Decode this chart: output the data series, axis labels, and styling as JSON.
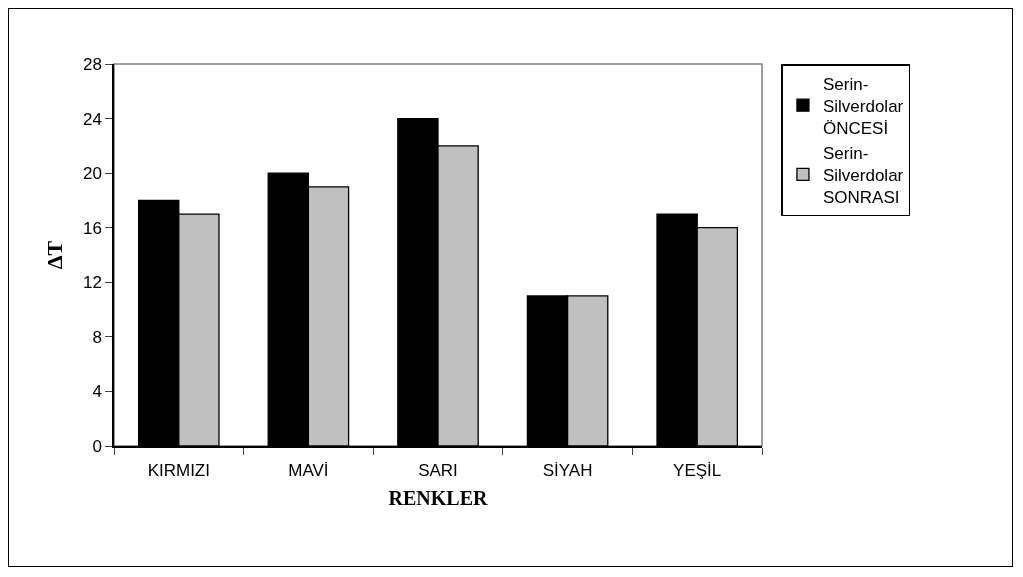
{
  "chart_data": {
    "type": "bar",
    "xlabel": "RENKLER",
    "ylabel": "ΔT",
    "categories": [
      "KIRMIZI",
      "MAVİ",
      "SARI",
      "SİYAH",
      "YEŞİL"
    ],
    "series": [
      {
        "name": "Serin-Silverdolar ÖNCESİ",
        "color": "#000000",
        "values": [
          18,
          20,
          24,
          11,
          17
        ]
      },
      {
        "name": "Serin-Silverdolar SONRASI",
        "color": "#c0c0c0",
        "values": [
          17,
          19,
          22,
          11,
          16
        ]
      }
    ],
    "ylim": [
      0,
      28
    ],
    "yticks": [
      0,
      4,
      8,
      12,
      16,
      20,
      24,
      28
    ],
    "grid": false,
    "legend": "right"
  }
}
